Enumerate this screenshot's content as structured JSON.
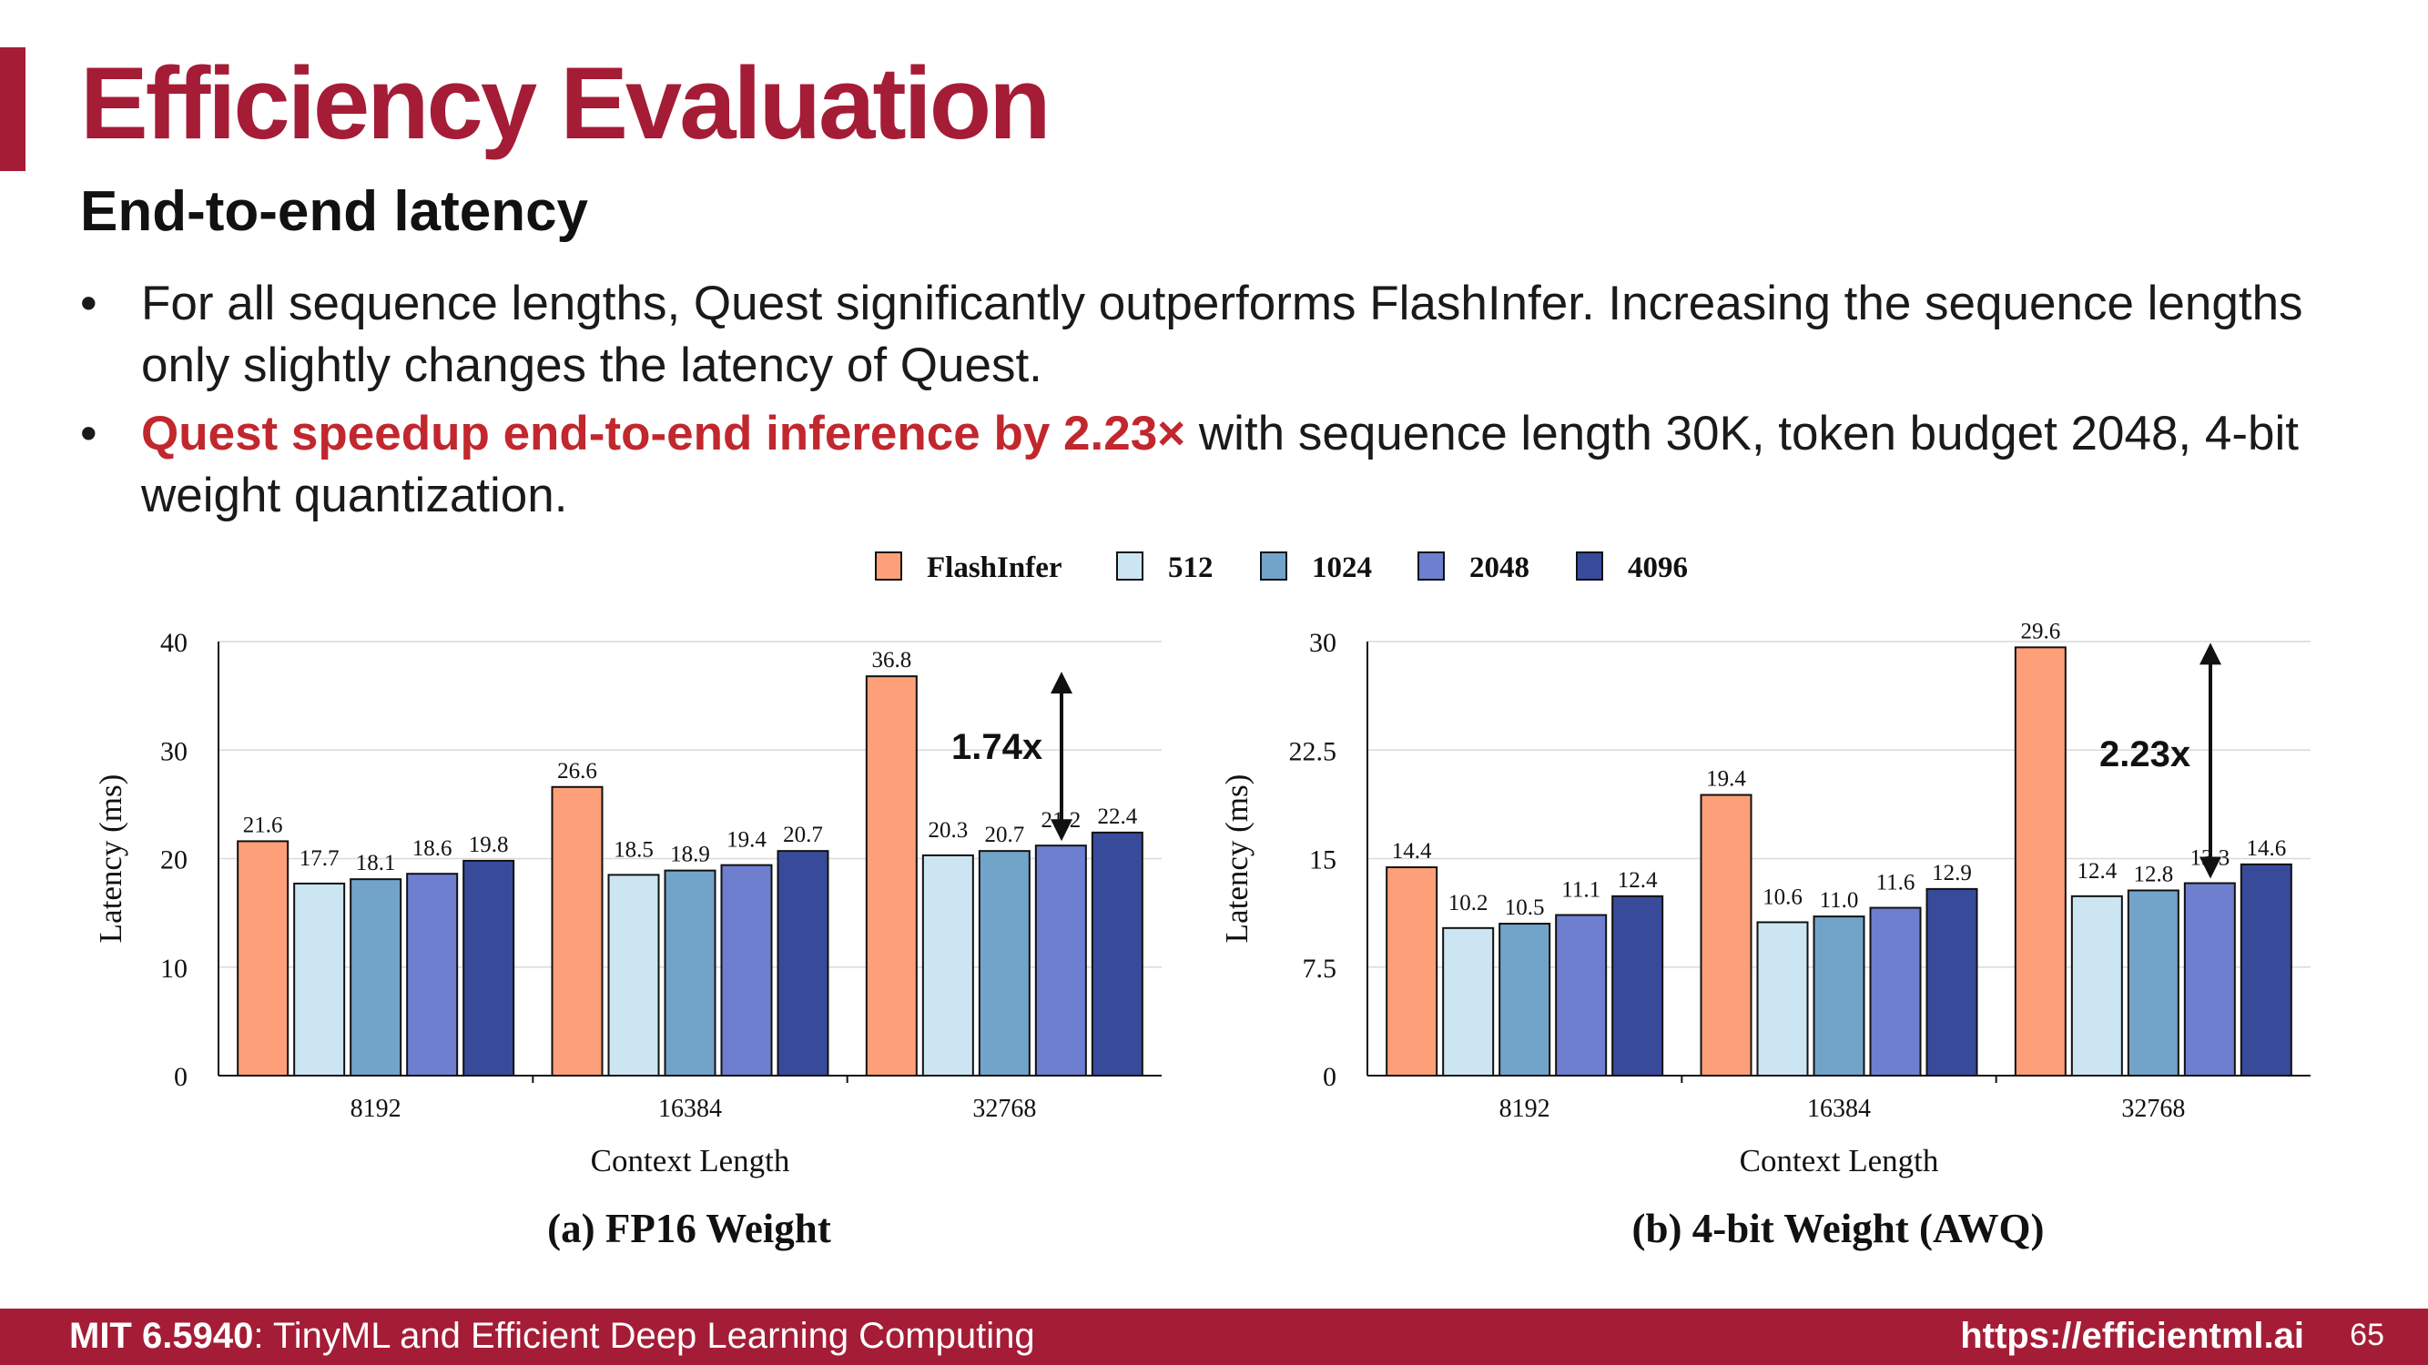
{
  "slide": {
    "title": "Efficiency Evaluation",
    "subtitle": "End-to-end latency",
    "bullet1": "For all sequence lengths, Quest significantly outperforms FlashInfer. Increasing the sequence lengths only slightly changes the latency of Quest.",
    "bullet2_highlight": "Quest speedup end-to-end inference by 2.23×",
    "bullet2_rest": " with sequence length 30K, token budget 2048, 4-bit weight quantization."
  },
  "footer": {
    "course_code": "MIT 6.5940",
    "course_name": ": TinyML and Efficient Deep Learning Computing",
    "url": "https://efficientml.ai",
    "page": "65"
  },
  "legend": [
    "FlashInfer",
    "512",
    "1024",
    "2048",
    "4096"
  ],
  "colors": [
    "#fda079",
    "#cbe6f2",
    "#72a4ca",
    "#6e7fcf",
    "#384b9b"
  ],
  "chart_data": [
    {
      "type": "bar",
      "title": "(a) FP16 Weight",
      "xlabel": "Context Length",
      "ylabel": "Latency (ms)",
      "ylim": [
        0,
        40
      ],
      "yticks": [
        "0",
        "10",
        "20",
        "30",
        "40"
      ],
      "categories": [
        "8192",
        "16384",
        "32768"
      ],
      "series": [
        {
          "name": "FlashInfer",
          "values": [
            21.6,
            26.6,
            36.8
          ]
        },
        {
          "name": "512",
          "values": [
            17.7,
            18.5,
            20.3
          ]
        },
        {
          "name": "1024",
          "values": [
            18.1,
            18.9,
            20.7
          ]
        },
        {
          "name": "2048",
          "values": [
            18.6,
            19.4,
            21.2
          ]
        },
        {
          "name": "4096",
          "values": [
            19.8,
            20.7,
            22.4
          ]
        }
      ],
      "annotation": {
        "text": "1.74x",
        "category": "32768",
        "from": 36.8,
        "to": 21.2
      },
      "grid": true,
      "legend_position": "top-center"
    },
    {
      "type": "bar",
      "title": "(b) 4-bit Weight (AWQ)",
      "xlabel": "Context Length",
      "ylabel": "Latency (ms)",
      "ylim": [
        0,
        30
      ],
      "yticks": [
        "0",
        "7.5",
        "15",
        "22.5",
        "30"
      ],
      "categories": [
        "8192",
        "16384",
        "32768"
      ],
      "series": [
        {
          "name": "FlashInfer",
          "values": [
            14.4,
            19.4,
            29.6
          ]
        },
        {
          "name": "512",
          "values": [
            10.2,
            10.6,
            12.4
          ]
        },
        {
          "name": "1024",
          "values": [
            10.5,
            11.0,
            12.8
          ]
        },
        {
          "name": "2048",
          "values": [
            11.1,
            11.6,
            13.3
          ]
        },
        {
          "name": "4096",
          "values": [
            12.4,
            12.9,
            14.6
          ]
        }
      ],
      "annotation": {
        "text": "2.23x",
        "category": "32768",
        "from": 29.6,
        "to": 13.3
      },
      "grid": true,
      "legend_position": "top-center"
    }
  ]
}
